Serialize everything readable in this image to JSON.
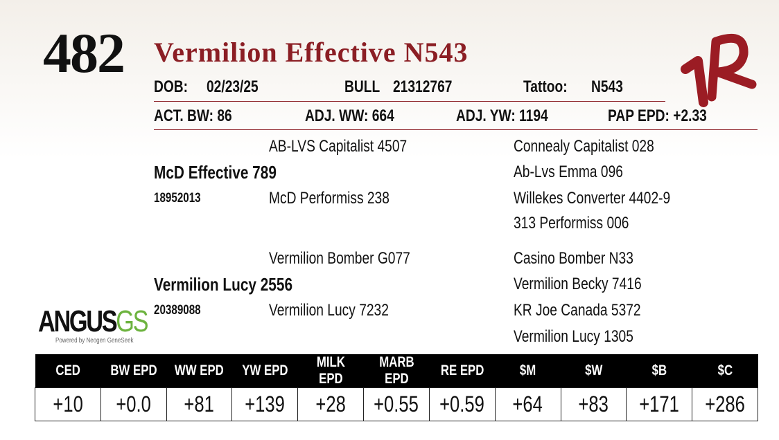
{
  "lot": "482",
  "name": "Vermilion Effective N543",
  "info": {
    "dob_label": "DOB:",
    "dob": "02/23/25",
    "sex": "BULL",
    "registration": "21312767",
    "tattoo_label": "Tattoo:",
    "tattoo": "N543"
  },
  "weights": [
    {
      "label": "ACT. BW:",
      "value": "86"
    },
    {
      "label": "ADJ. WW:",
      "value": "664"
    },
    {
      "label": "ADJ. YW:",
      "value": "1194"
    },
    {
      "label": "PAP EPD:",
      "value": "+2.33"
    }
  ],
  "pedigree": {
    "sire": {
      "name": "McD Effective 789",
      "registration": "18952013"
    },
    "sire_sire": "AB-LVS Capitalist 4507",
    "sire_dam": "McD Performiss 238",
    "sire_sire_sire": "Connealy Capitalist 028",
    "sire_sire_dam": "Ab-Lvs Emma 096",
    "sire_dam_sire": "Willekes Converter 4402-9",
    "sire_dam_dam": "313 Performiss 006",
    "dam": {
      "name": "Vermilion Lucy 2556",
      "registration": "20389088"
    },
    "dam_sire": "Vermilion Bomber G077",
    "dam_dam": "Vermilion Lucy 7232",
    "dam_sire_sire": "Casino Bomber N33",
    "dam_sire_dam": "Vermilion Becky 7416",
    "dam_dam_sire": "KR Joe Canada 5372",
    "dam_dam_dam": "Vermilion Lucy 1305"
  },
  "logo": {
    "brand": "ANGUS",
    "suffix": "GS",
    "tagline": "Powered by Neogen GeneSeek"
  },
  "epd_table": {
    "headers": [
      "CED",
      "BW EPD",
      "WW EPD",
      "YW EPD",
      "MILK EPD",
      "MARB EPD",
      "RE EPD",
      "$M",
      "$W",
      "$B",
      "$C"
    ],
    "values": [
      "+10",
      "+0.0",
      "+81",
      "+139",
      "+28",
      "+0.55",
      "+0.59",
      "+64",
      "+83",
      "+171",
      "+286"
    ]
  }
}
